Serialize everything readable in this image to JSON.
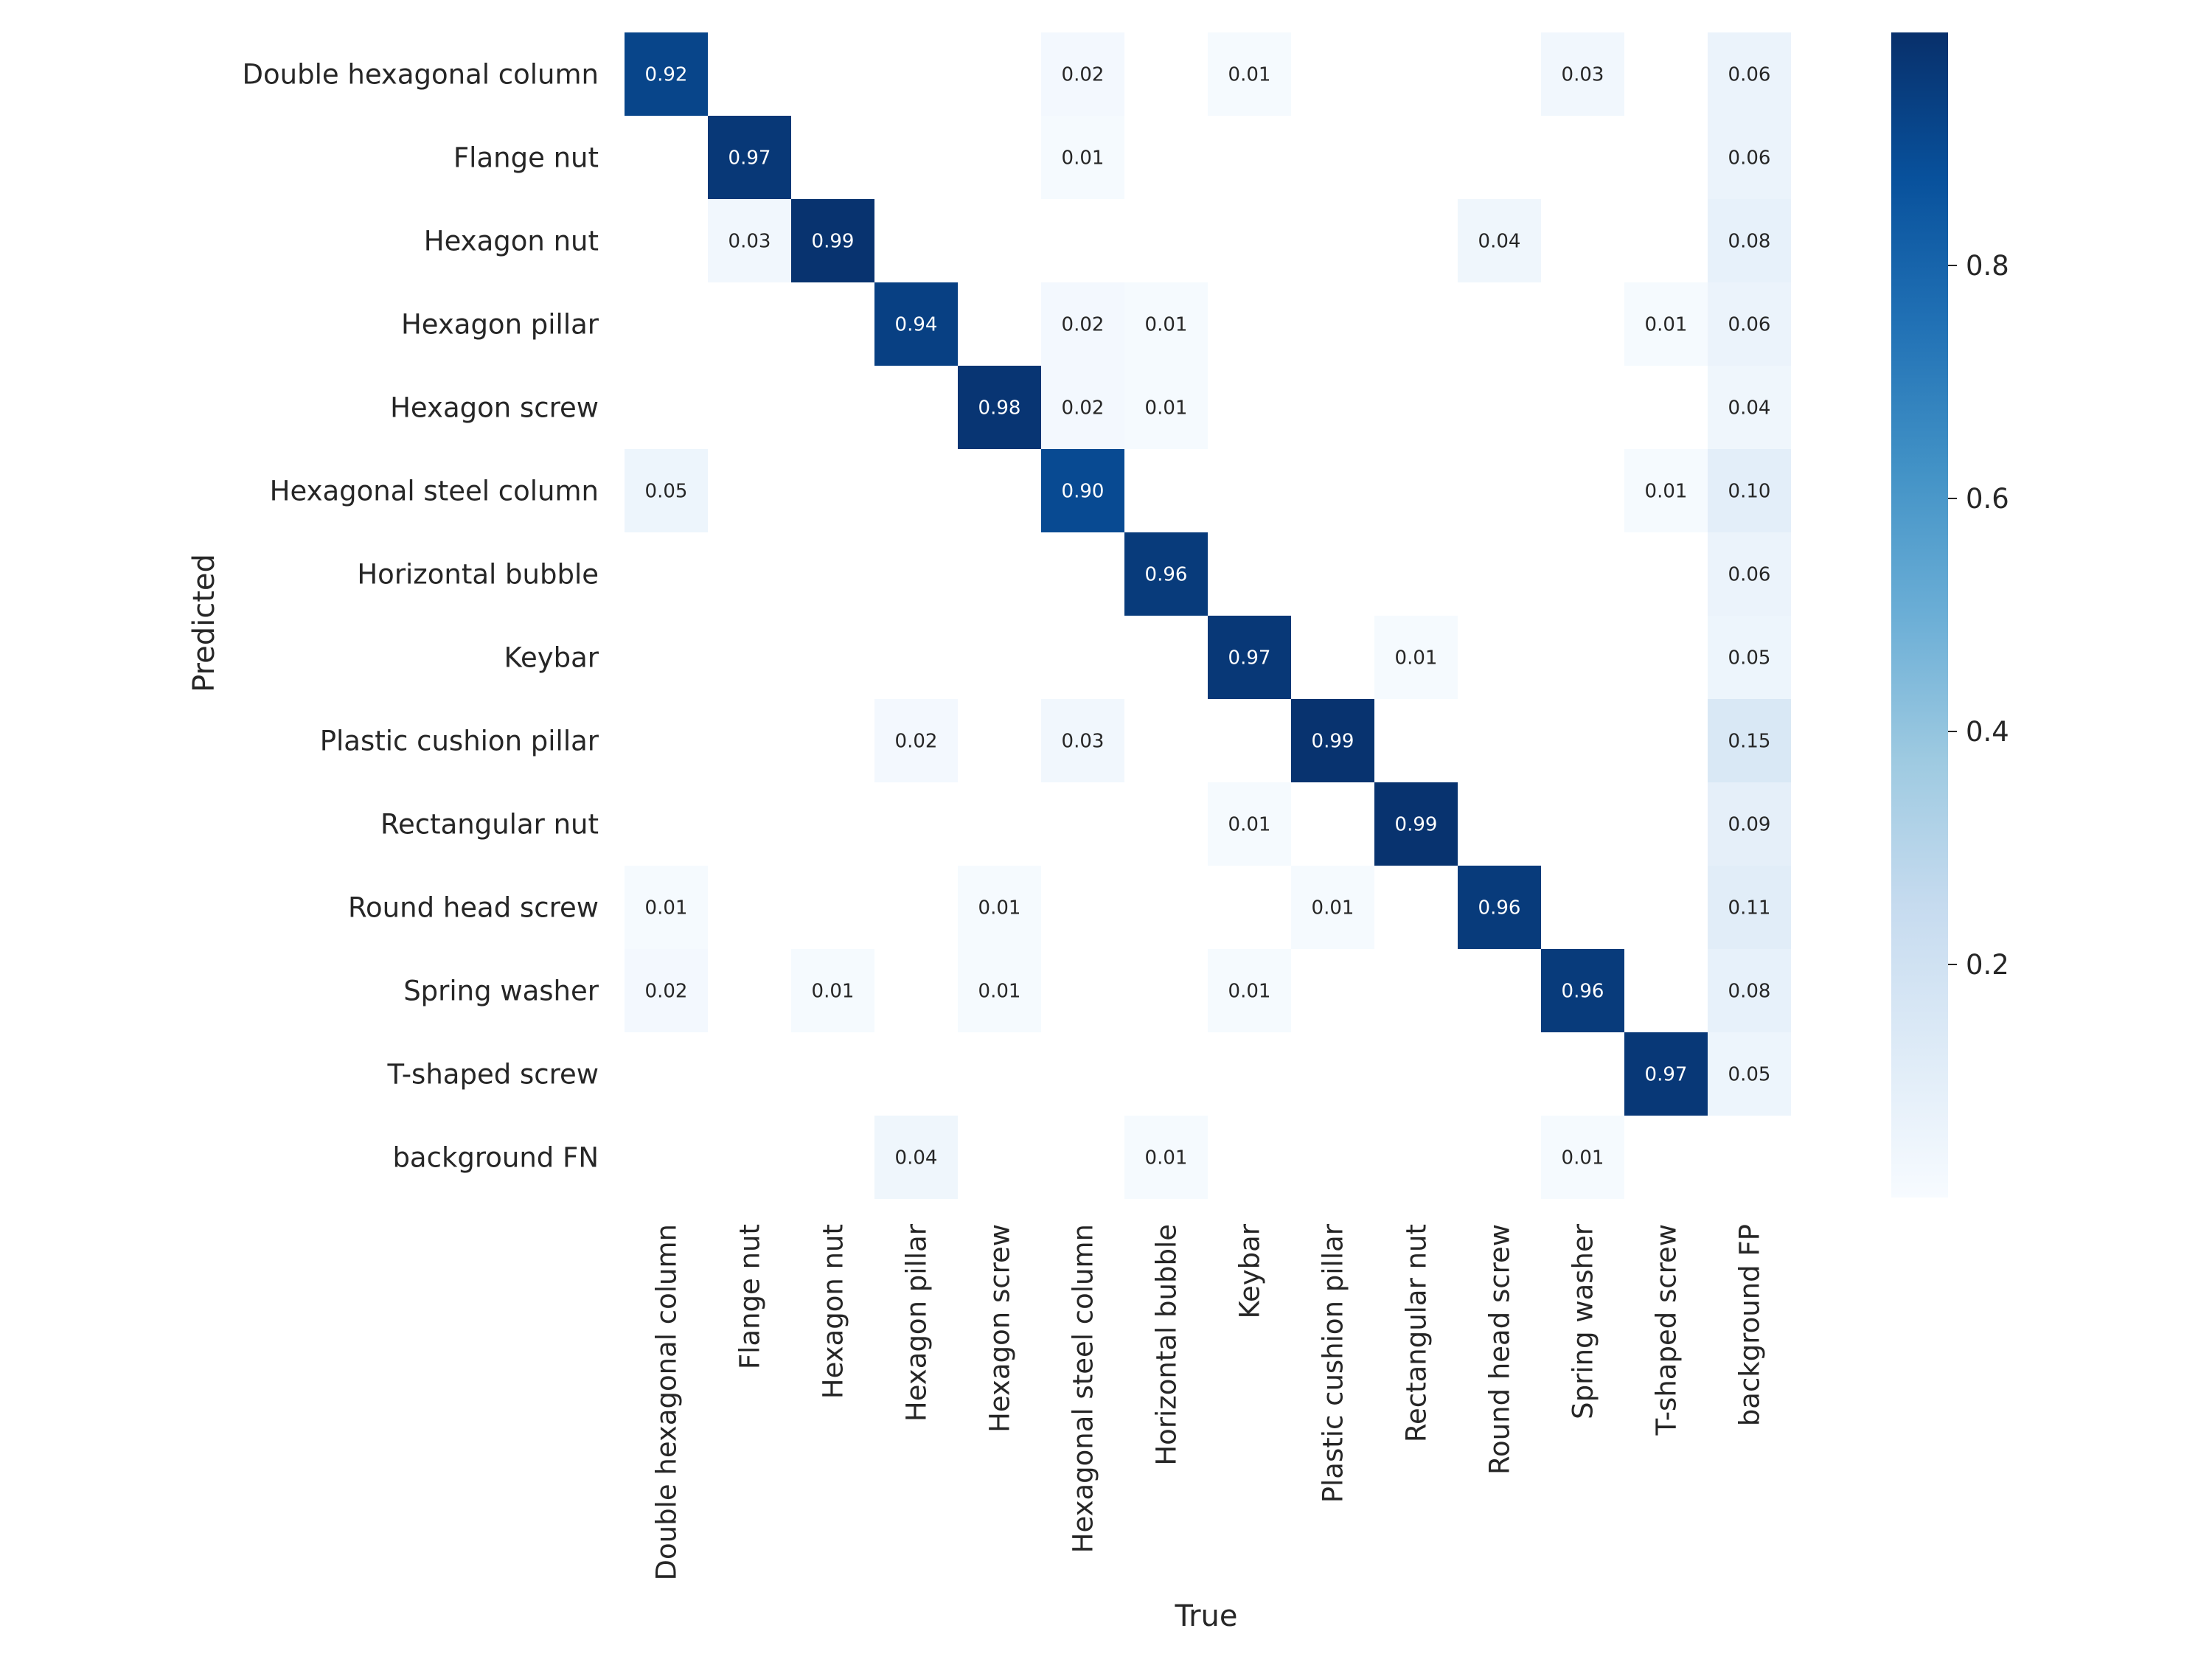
{
  "chart_data": {
    "type": "heatmap",
    "title": "",
    "xlabel": "True",
    "ylabel": "Predicted",
    "x_categories": [
      "Double hexagonal column",
      "Flange nut",
      "Hexagon nut",
      "Hexagon pillar",
      "Hexagon screw",
      "Hexagonal steel column",
      "Horizontal bubble",
      "Keybar",
      "Plastic cushion pillar",
      "Rectangular nut",
      "Round head screw",
      "Spring washer",
      "T-shaped screw",
      "background FP"
    ],
    "y_categories": [
      "Double hexagonal column",
      "Flange nut",
      "Hexagon nut",
      "Hexagon pillar",
      "Hexagon screw",
      "Hexagonal steel column",
      "Horizontal bubble",
      "Keybar",
      "Plastic cushion pillar",
      "Rectangular nut",
      "Round head screw",
      "Spring washer",
      "T-shaped screw",
      "background FN"
    ],
    "values": [
      [
        0.92,
        null,
        null,
        null,
        null,
        0.02,
        null,
        0.01,
        null,
        null,
        null,
        0.03,
        null,
        0.06
      ],
      [
        null,
        0.97,
        null,
        null,
        null,
        0.01,
        null,
        null,
        null,
        null,
        null,
        null,
        null,
        0.06
      ],
      [
        null,
        0.03,
        0.99,
        null,
        null,
        null,
        null,
        null,
        null,
        null,
        0.04,
        null,
        null,
        0.08
      ],
      [
        null,
        null,
        null,
        0.94,
        null,
        0.02,
        0.01,
        null,
        null,
        null,
        null,
        null,
        0.01,
        0.06
      ],
      [
        null,
        null,
        null,
        null,
        0.98,
        0.02,
        0.01,
        null,
        null,
        null,
        null,
        null,
        null,
        0.04
      ],
      [
        0.05,
        null,
        null,
        null,
        null,
        0.9,
        null,
        null,
        null,
        null,
        null,
        null,
        0.01,
        0.1
      ],
      [
        null,
        null,
        null,
        null,
        null,
        null,
        0.96,
        null,
        null,
        null,
        null,
        null,
        null,
        0.06
      ],
      [
        null,
        null,
        null,
        null,
        null,
        null,
        null,
        0.97,
        null,
        0.01,
        null,
        null,
        null,
        0.05
      ],
      [
        null,
        null,
        null,
        0.02,
        null,
        0.03,
        null,
        null,
        0.99,
        null,
        null,
        null,
        null,
        0.15
      ],
      [
        null,
        null,
        null,
        null,
        null,
        null,
        null,
        0.01,
        null,
        0.99,
        null,
        null,
        null,
        0.09
      ],
      [
        0.01,
        null,
        null,
        null,
        0.01,
        null,
        null,
        null,
        0.01,
        null,
        0.96,
        null,
        null,
        0.11
      ],
      [
        0.02,
        null,
        0.01,
        null,
        0.01,
        null,
        null,
        0.01,
        null,
        null,
        null,
        0.96,
        null,
        0.08
      ],
      [
        null,
        null,
        null,
        null,
        null,
        null,
        null,
        null,
        null,
        null,
        null,
        null,
        0.97,
        0.05
      ],
      [
        null,
        null,
        null,
        0.04,
        null,
        null,
        0.01,
        null,
        null,
        null,
        null,
        0.01,
        null,
        null
      ]
    ],
    "value_format": "0.00",
    "colormap": "Blues",
    "color_min": "#f7fbff",
    "color_max": "#08306b",
    "vmin": 0.0,
    "vmax": 1.0,
    "colorbar_ticks": [
      "0.2",
      "0.4",
      "0.6",
      "0.8"
    ],
    "grid": false,
    "legend": "colorbar-right"
  }
}
